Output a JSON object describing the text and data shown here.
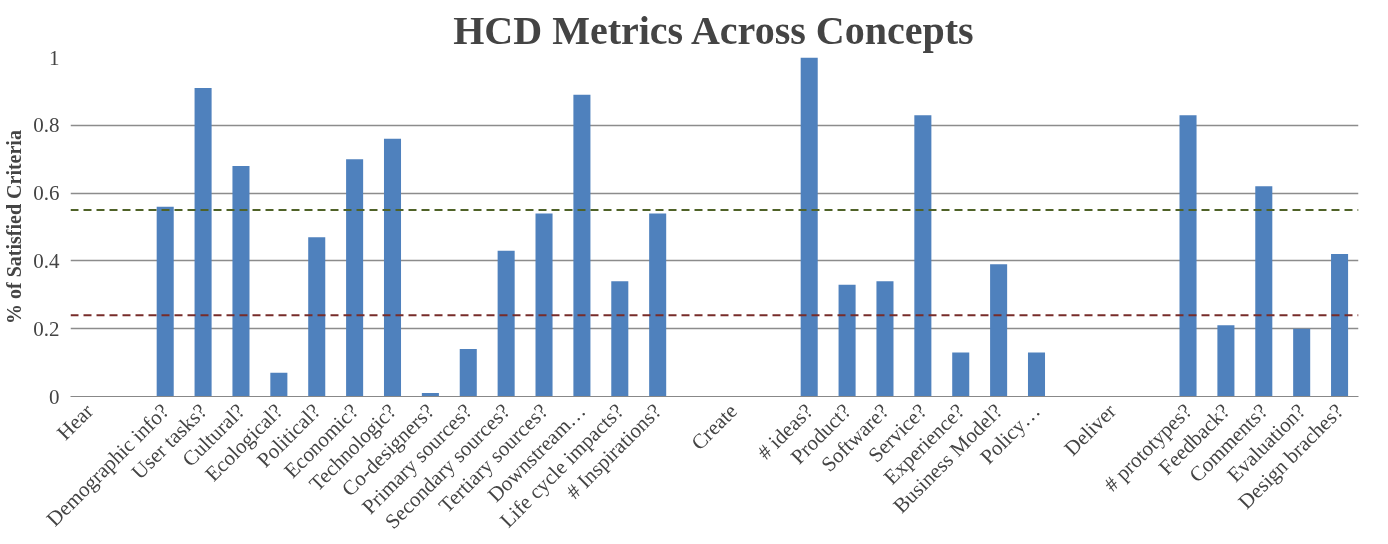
{
  "chart_data": {
    "type": "bar",
    "title": "HCD Metrics Across Concepts",
    "ylabel": "% of Satisfied Criteria",
    "categories": [
      "Hear",
      null,
      "Demographic info?",
      "User tasks?",
      "Cultural?",
      "Ecological?",
      "Political?",
      "Economic?",
      "Technologic?",
      "Co-designers?",
      "Primary sources?",
      "Secondary sources?",
      "Tertiary sources?",
      "Downstream…",
      "Life cycle impacts?",
      "# Inspirations?",
      null,
      "Create",
      null,
      "# ideas?",
      "Product?",
      "Software?",
      "Service?",
      "Experience?",
      "Business Model?",
      "Policy…",
      null,
      "Deliver",
      null,
      "# prototypes?",
      "Feedback?",
      "Comments?",
      "Evaluation?",
      "Design braches?"
    ],
    "values": [
      null,
      null,
      0.56,
      0.91,
      0.68,
      0.07,
      0.47,
      0.7,
      0.76,
      0.01,
      0.14,
      0.43,
      0.54,
      0.89,
      0.34,
      0.54,
      null,
      null,
      null,
      1.0,
      0.33,
      0.34,
      0.83,
      0.13,
      0.39,
      0.13,
      null,
      null,
      null,
      0.83,
      0.21,
      0.62,
      0.2,
      0.42
    ],
    "color": "#4f81bd",
    "ylim": [
      0,
      1
    ],
    "yticks": [
      {
        "value": 0,
        "label": "0"
      },
      0.2,
      0.4,
      0.6,
      0.8,
      {
        "value": 1,
        "label": "1"
      }
    ],
    "grid": "y",
    "ref_lines": [
      {
        "axis": "y",
        "value": 0.55,
        "label": null,
        "color": "#4f6228",
        "line_style": "dashed"
      },
      {
        "axis": "y",
        "value": 0.24,
        "label": null,
        "color": "#772c2a",
        "line_style": "dashed"
      }
    ]
  }
}
